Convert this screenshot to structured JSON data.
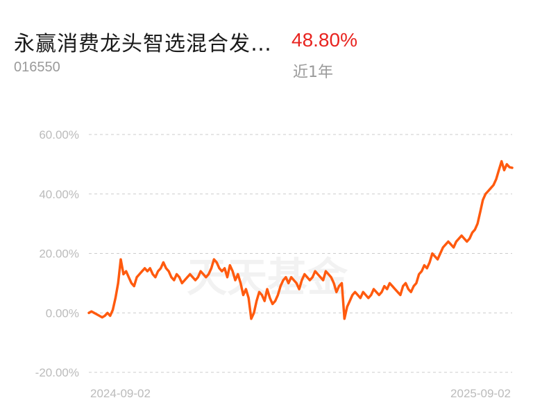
{
  "header": {
    "fund_name": "永赢消费龙头智选混合发…",
    "fund_code": "016550",
    "return_value": "48.80%",
    "period_label": "近1年"
  },
  "watermark": "天天基金",
  "colors": {
    "line": "#ff5a0e",
    "grid": "#cccccc",
    "return": "#e8231f",
    "label": "#bbbbbb"
  },
  "chart_data": {
    "type": "line",
    "title": "",
    "xlabel": "",
    "ylabel": "",
    "ylim": [
      -20,
      60
    ],
    "yticks": [
      60,
      40,
      20,
      0,
      -20
    ],
    "ytick_labels": [
      "60.00%",
      "40.00%",
      "20.00%",
      "0.00%",
      "-20.00%"
    ],
    "xtick_labels": [
      "2024-09-02",
      "2025-09-02"
    ],
    "grid": true,
    "series": [
      {
        "name": "",
        "values": [
          0,
          0.5,
          0,
          -0.5,
          -1,
          -1.5,
          -1,
          0,
          -1,
          1,
          5,
          10,
          18,
          13,
          14,
          12,
          10,
          9,
          12,
          13,
          14,
          15,
          14,
          15,
          13,
          12,
          14,
          15,
          17,
          15,
          14,
          12,
          11,
          13,
          12,
          10,
          11,
          12,
          13,
          12,
          11,
          12,
          14,
          13,
          12,
          13,
          15,
          18,
          17,
          15,
          14,
          15,
          12,
          16,
          14,
          11,
          13,
          10,
          6,
          8,
          5,
          -2,
          0,
          4,
          7,
          6,
          4,
          8,
          5,
          3,
          4,
          6,
          9,
          11,
          12,
          10,
          12,
          11,
          10,
          8,
          11,
          13,
          12,
          11,
          12,
          14,
          13,
          12,
          11,
          14,
          13,
          12,
          10,
          7,
          9,
          10,
          -2,
          2,
          4,
          6,
          7,
          6,
          5,
          7,
          6,
          5,
          6,
          8,
          7,
          6,
          7,
          9,
          8,
          10,
          9,
          8,
          7,
          6,
          9,
          10,
          8,
          7,
          9,
          10,
          13,
          14,
          16,
          15,
          17,
          20,
          19,
          18,
          20,
          22,
          23,
          24,
          23,
          22,
          24,
          25,
          26,
          25,
          24,
          25,
          27,
          28,
          30,
          34,
          38,
          40,
          41,
          42,
          43,
          45,
          48,
          51,
          48,
          50,
          49,
          48.8
        ]
      }
    ]
  }
}
